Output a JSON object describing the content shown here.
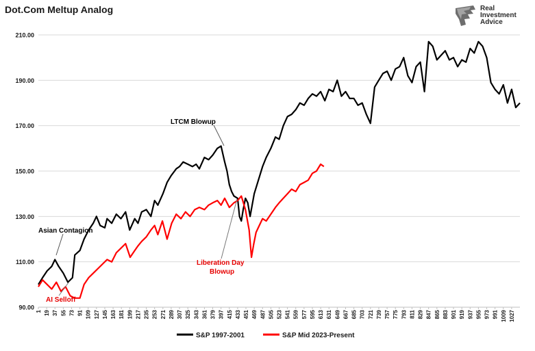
{
  "title": "Dot.Com Meltup Analog",
  "logo": {
    "line1": "Real",
    "line2": "Investment",
    "line3": "Advice"
  },
  "colors": {
    "series1": "#000000",
    "series2": "#ff0000",
    "grid": "#d9d9d9",
    "label_red": "#e60000"
  },
  "chart_data": {
    "type": "line",
    "title": "Dot.Com Meltup Analog",
    "xlabel": "",
    "ylabel": "",
    "ylim": [
      90,
      210
    ],
    "yticks": [
      "90.00",
      "110.00",
      "130.00",
      "150.00",
      "170.00",
      "190.00",
      "210.00"
    ],
    "xticks": [
      "1",
      "19",
      "37",
      "55",
      "73",
      "91",
      "109",
      "127",
      "145",
      "163",
      "181",
      "199",
      "217",
      "235",
      "253",
      "271",
      "289",
      "307",
      "325",
      "343",
      "361",
      "379",
      "397",
      "415",
      "433",
      "451",
      "469",
      "487",
      "505",
      "523",
      "541",
      "559",
      "577",
      "595",
      "613",
      "631",
      "649",
      "667",
      "685",
      "703",
      "721",
      "739",
      "757",
      "775",
      "793",
      "811",
      "829",
      "847",
      "865",
      "883",
      "901",
      "919",
      "937",
      "955",
      "973",
      "991",
      "1009",
      "1027"
    ],
    "grid": true,
    "legend_position": "bottom",
    "series": [
      {
        "name": "S&P 1997-2001",
        "color": "#000000",
        "x": [
          1,
          10,
          20,
          30,
          37,
          45,
          55,
          65,
          75,
          80,
          91,
          100,
          110,
          120,
          127,
          135,
          145,
          150,
          160,
          170,
          180,
          190,
          199,
          210,
          217,
          225,
          235,
          245,
          253,
          260,
          271,
          280,
          289,
          300,
          307,
          315,
          325,
          335,
          343,
          350,
          361,
          370,
          379,
          389,
          397,
          405,
          410,
          415,
          420,
          425,
          433,
          437,
          441,
          445,
          450,
          455,
          460,
          469,
          478,
          487,
          495,
          505,
          515,
          523,
          532,
          541,
          550,
          559,
          568,
          577,
          586,
          595,
          604,
          613,
          622,
          631,
          640,
          649,
          658,
          667,
          676,
          685,
          694,
          703,
          712,
          721,
          730,
          739,
          748,
          757,
          766,
          775,
          784,
          793,
          802,
          811,
          820,
          829,
          838,
          847,
          856,
          865,
          874,
          883,
          892,
          901,
          910,
          919,
          928,
          937,
          946,
          955,
          964,
          973,
          982,
          991,
          1000,
          1009,
          1018,
          1027,
          1036,
          1045
        ],
        "values": [
          100,
          103,
          106,
          108,
          111,
          108,
          105,
          101,
          103,
          113,
          115,
          120,
          124,
          127,
          130,
          126,
          125,
          129,
          127,
          131,
          129,
          132,
          124,
          129,
          127,
          132,
          133,
          130,
          137,
          135,
          140,
          145,
          148,
          151,
          152,
          154,
          153,
          152,
          153,
          151,
          156,
          155,
          157,
          160,
          161,
          154,
          150,
          144,
          141,
          139,
          138,
          130,
          128,
          133,
          138,
          136,
          130,
          140,
          146,
          152,
          156,
          160,
          165,
          164,
          170,
          174,
          175,
          177,
          180,
          179,
          182,
          184,
          183,
          185,
          181,
          186,
          185,
          190,
          183,
          185,
          182,
          182,
          179,
          180,
          175,
          171,
          187,
          190,
          193,
          194,
          190,
          195,
          196,
          200,
          192,
          189,
          196,
          198,
          185,
          207,
          205,
          199,
          201,
          203,
          199,
          200,
          196,
          199,
          198,
          204,
          202,
          207,
          205,
          200,
          189,
          186,
          184,
          188,
          180,
          186,
          178,
          180
        ]
      },
      {
        "name": "S&P Mid 2023-Present",
        "color": "#ff0000",
        "x": [
          1,
          10,
          20,
          30,
          40,
          50,
          60,
          70,
          80,
          91,
          100,
          110,
          120,
          130,
          140,
          150,
          160,
          170,
          180,
          190,
          200,
          210,
          217,
          225,
          235,
          245,
          253,
          260,
          270,
          280,
          290,
          300,
          310,
          320,
          330,
          340,
          350,
          361,
          370,
          379,
          389,
          397,
          405,
          415,
          425,
          433,
          441,
          450,
          458,
          463,
          468,
          473,
          480,
          487,
          495,
          505,
          515,
          523,
          532,
          541,
          550,
          559,
          568,
          577,
          586,
          595,
          604,
          613,
          620
        ],
        "values": [
          99,
          102,
          100,
          98,
          101,
          97,
          99,
          95,
          94,
          94,
          100,
          103,
          105,
          107,
          109,
          111,
          110,
          114,
          116,
          118,
          112,
          115,
          117,
          119,
          121,
          124,
          126,
          122,
          128,
          120,
          127,
          131,
          129,
          132,
          130,
          133,
          134,
          133,
          135,
          136,
          137,
          135,
          138,
          134,
          136,
          137,
          139,
          133,
          124,
          112,
          118,
          123,
          126,
          129,
          128,
          131,
          134,
          136,
          138,
          140,
          142,
          141,
          144,
          145,
          146,
          149,
          150,
          153,
          152
        ]
      }
    ],
    "annotations": [
      {
        "text": "LTCM Blowup",
        "color": "#000000"
      },
      {
        "text": "Asian Contagion",
        "color": "#000000"
      },
      {
        "text": "AI Selloff",
        "color": "#e60000"
      },
      {
        "text": "Liberation Day",
        "color": "#e60000"
      },
      {
        "text": "Blowup",
        "color": "#e60000"
      }
    ]
  }
}
